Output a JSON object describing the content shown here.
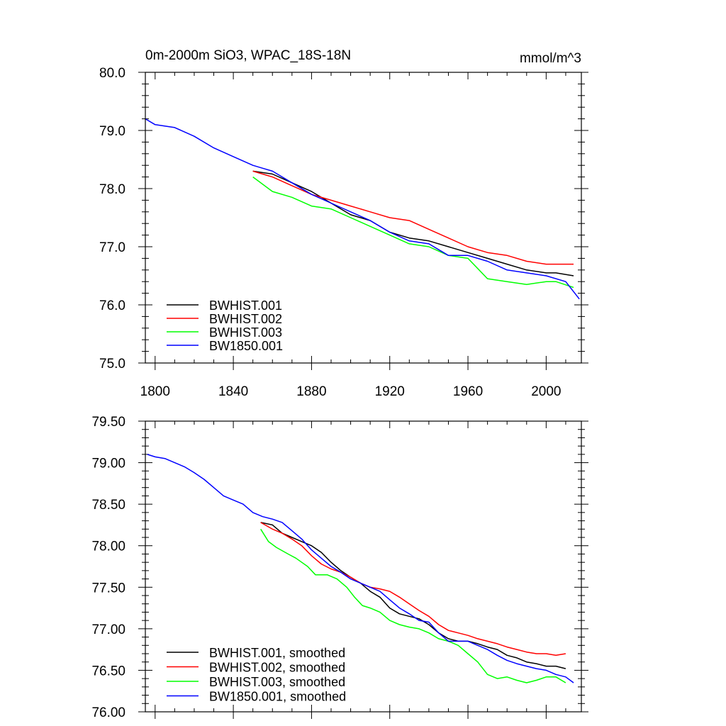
{
  "chart_data": [
    {
      "type": "line",
      "title": "0m-2000m SiO3, WPAC_18S-18N",
      "units": "mmol/m^3",
      "xlim": [
        1795,
        2018
      ],
      "ylim": [
        75.0,
        80.0
      ],
      "xticks": [
        1800,
        1840,
        1880,
        1920,
        1960,
        2000
      ],
      "xtick_labels": [
        "1800",
        "1840",
        "1880",
        "1920",
        "1960",
        "2000"
      ],
      "yticks": [
        75.0,
        76.0,
        77.0,
        78.0,
        79.0,
        80.0
      ],
      "ytick_labels": [
        "75.0",
        "76.0",
        "77.0",
        "78.0",
        "79.0",
        "80.0"
      ],
      "grid": false,
      "legend": "bottom-left",
      "series": [
        {
          "name": "BWHIST.001",
          "color": "#000000",
          "x": [
            1850,
            1860,
            1870,
            1880,
            1890,
            1900,
            1910,
            1920,
            1930,
            1940,
            1950,
            1960,
            1970,
            1980,
            1990,
            2000,
            2005,
            2014
          ],
          "y": [
            78.3,
            78.25,
            78.1,
            77.95,
            77.75,
            77.55,
            77.45,
            77.25,
            77.15,
            77.1,
            77.0,
            76.9,
            76.8,
            76.7,
            76.6,
            76.55,
            76.55,
            76.5
          ]
        },
        {
          "name": "BWHIST.002",
          "color": "#ff0000",
          "x": [
            1850,
            1860,
            1870,
            1880,
            1890,
            1900,
            1910,
            1920,
            1930,
            1940,
            1950,
            1960,
            1970,
            1980,
            1990,
            2000,
            2005,
            2014
          ],
          "y": [
            78.3,
            78.2,
            78.05,
            77.9,
            77.8,
            77.7,
            77.6,
            77.5,
            77.45,
            77.3,
            77.15,
            77.0,
            76.9,
            76.85,
            76.75,
            76.7,
            76.7,
            76.7
          ]
        },
        {
          "name": "BWHIST.003",
          "color": "#00ff00",
          "x": [
            1850,
            1860,
            1870,
            1880,
            1890,
            1900,
            1910,
            1920,
            1930,
            1940,
            1950,
            1960,
            1970,
            1980,
            1990,
            2000,
            2005,
            2014
          ],
          "y": [
            78.2,
            77.95,
            77.85,
            77.7,
            77.65,
            77.5,
            77.35,
            77.2,
            77.05,
            77.0,
            76.85,
            76.8,
            76.45,
            76.4,
            76.35,
            76.4,
            76.4,
            76.3
          ]
        },
        {
          "name": "BW1850.001",
          "color": "#0000ff",
          "x": [
            1795,
            1800,
            1810,
            1820,
            1830,
            1840,
            1850,
            1855,
            1860,
            1870,
            1880,
            1890,
            1900,
            1910,
            1920,
            1930,
            1940,
            1950,
            1960,
            1970,
            1980,
            1990,
            2000,
            2010,
            2017
          ],
          "y": [
            79.2,
            79.1,
            79.05,
            78.9,
            78.7,
            78.55,
            78.4,
            78.35,
            78.3,
            78.1,
            77.9,
            77.75,
            77.6,
            77.45,
            77.25,
            77.1,
            77.05,
            76.85,
            76.85,
            76.75,
            76.6,
            76.55,
            76.5,
            76.4,
            76.1
          ]
        }
      ]
    },
    {
      "type": "line",
      "xlim": [
        1795,
        2018
      ],
      "ylim": [
        76.0,
        79.5
      ],
      "xticks": [
        1800,
        1840,
        1880,
        1920,
        1960,
        2000
      ],
      "yticks": [
        76.0,
        76.5,
        77.0,
        77.5,
        78.0,
        78.5,
        79.0,
        79.5
      ],
      "ytick_labels": [
        "76.00",
        "76.50",
        "77.00",
        "77.50",
        "78.00",
        "78.50",
        "79.00",
        "79.50"
      ],
      "grid": false,
      "legend": "bottom-left",
      "series": [
        {
          "name": "BWHIST.001, smoothed",
          "color": "#000000",
          "x": [
            1854,
            1860,
            1865,
            1870,
            1875,
            1880,
            1885,
            1890,
            1895,
            1900,
            1905,
            1910,
            1915,
            1920,
            1925,
            1930,
            1935,
            1940,
            1945,
            1950,
            1955,
            1960,
            1965,
            1970,
            1975,
            1980,
            1985,
            1990,
            1995,
            2000,
            2005,
            2010
          ],
          "y": [
            78.28,
            78.25,
            78.15,
            78.1,
            78.05,
            78.0,
            77.92,
            77.8,
            77.7,
            77.62,
            77.55,
            77.45,
            77.38,
            77.25,
            77.18,
            77.15,
            77.12,
            77.05,
            76.95,
            76.88,
            76.85,
            76.85,
            76.82,
            76.78,
            76.75,
            76.68,
            76.65,
            76.6,
            76.58,
            76.55,
            76.55,
            76.52
          ]
        },
        {
          "name": "BWHIST.002, smoothed",
          "color": "#ff0000",
          "x": [
            1854,
            1860,
            1865,
            1870,
            1875,
            1880,
            1885,
            1890,
            1895,
            1900,
            1905,
            1910,
            1915,
            1920,
            1925,
            1930,
            1935,
            1940,
            1945,
            1950,
            1955,
            1960,
            1965,
            1970,
            1975,
            1980,
            1985,
            1990,
            1995,
            2000,
            2005,
            2010
          ],
          "y": [
            78.28,
            78.2,
            78.15,
            78.08,
            78.0,
            77.88,
            77.78,
            77.72,
            77.68,
            77.62,
            77.55,
            77.5,
            77.48,
            77.45,
            77.38,
            77.3,
            77.22,
            77.15,
            77.05,
            76.98,
            76.95,
            76.92,
            76.88,
            76.85,
            76.82,
            76.78,
            76.75,
            76.72,
            76.7,
            76.7,
            76.68,
            76.7
          ]
        },
        {
          "name": "BWHIST.003, smoothed",
          "color": "#00ff00",
          "x": [
            1854,
            1858,
            1862,
            1868,
            1872,
            1878,
            1882,
            1888,
            1893,
            1898,
            1902,
            1906,
            1910,
            1915,
            1920,
            1925,
            1930,
            1935,
            1940,
            1945,
            1950,
            1955,
            1960,
            1965,
            1970,
            1975,
            1980,
            1985,
            1990,
            1995,
            2000,
            2005,
            2010
          ],
          "y": [
            78.2,
            78.05,
            77.98,
            77.9,
            77.85,
            77.75,
            77.65,
            77.65,
            77.6,
            77.5,
            77.38,
            77.28,
            77.25,
            77.2,
            77.1,
            77.05,
            77.02,
            77.0,
            76.95,
            76.88,
            76.85,
            76.8,
            76.7,
            76.6,
            76.45,
            76.4,
            76.42,
            76.38,
            76.35,
            76.38,
            76.42,
            76.42,
            76.35
          ]
        },
        {
          "name": "BW1850.001, smoothed",
          "color": "#0000ff",
          "x": [
            1796,
            1800,
            1805,
            1810,
            1815,
            1820,
            1825,
            1830,
            1835,
            1840,
            1845,
            1850,
            1855,
            1860,
            1865,
            1870,
            1875,
            1880,
            1885,
            1890,
            1895,
            1900,
            1905,
            1910,
            1915,
            1920,
            1925,
            1930,
            1935,
            1940,
            1945,
            1950,
            1955,
            1960,
            1965,
            1970,
            1975,
            1980,
            1985,
            1990,
            1995,
            2000,
            2005,
            2010,
            2014
          ],
          "y": [
            79.1,
            79.07,
            79.05,
            79.0,
            78.95,
            78.88,
            78.8,
            78.7,
            78.6,
            78.55,
            78.5,
            78.4,
            78.35,
            78.32,
            78.28,
            78.18,
            78.08,
            77.95,
            77.85,
            77.75,
            77.68,
            77.6,
            77.55,
            77.5,
            77.45,
            77.35,
            77.25,
            77.18,
            77.1,
            77.08,
            76.95,
            76.85,
            76.85,
            76.85,
            76.8,
            76.75,
            76.68,
            76.62,
            76.58,
            76.55,
            76.52,
            76.5,
            76.45,
            76.42,
            76.35
          ]
        }
      ]
    }
  ]
}
